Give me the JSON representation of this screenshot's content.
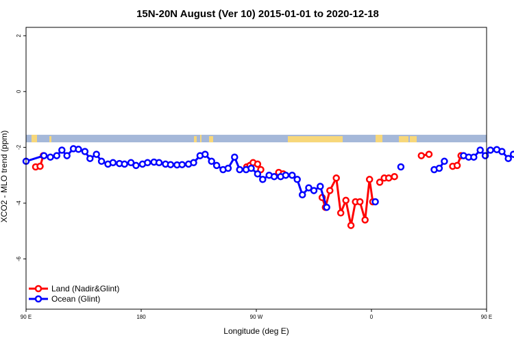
{
  "chart_data": {
    "type": "line",
    "title": "15N-20N August (Ver 10)   2015-01-01 to 2020-12-18",
    "xlabel": "Longitude (deg E)",
    "ylabel": "XCO2 - MLO trend (ppm)",
    "xlim": [
      90,
      450
    ],
    "ylim": [
      -7.8,
      2.3
    ],
    "x_ticks": [
      {
        "value": 90,
        "label": "90 E"
      },
      {
        "value": 180,
        "label": "180"
      },
      {
        "value": 270,
        "label": "90 W"
      },
      {
        "value": 360,
        "label": "0"
      },
      {
        "value": 450,
        "label": "90 E"
      },
      {
        "value": 540,
        "label": "180"
      }
    ],
    "y_ticks": [
      {
        "value": 2,
        "label": "2"
      },
      {
        "value": 0,
        "label": "0"
      },
      {
        "value": -2,
        "label": "-2"
      },
      {
        "value": -4,
        "label": "-4"
      },
      {
        "value": -6,
        "label": "-6"
      }
    ],
    "map_strip": {
      "y_top": -1.55,
      "y_bottom": -1.82,
      "ocean_color": "#a5b8d9",
      "land_color": "#f7d77a"
    },
    "legend": {
      "position": "bottom-left"
    },
    "series": [
      {
        "name": "Land (Nadir&Glint)",
        "color": "#ff0000",
        "segments": [
          [
            [
              97.5,
              -2.7
            ],
            [
              101,
              -2.68
            ],
            [
              103.5,
              -2.3
            ]
          ],
          [
            [
              262.5,
              -2.7
            ],
            [
              265,
              -2.65
            ],
            [
              267.5,
              -2.55
            ],
            [
              271,
              -2.6
            ],
            [
              273.5,
              -2.8
            ]
          ],
          [
            [
              287.5,
              -2.9
            ],
            [
              291,
              -2.95
            ]
          ],
          [
            [
              321.5,
              -3.8
            ],
            [
              324,
              -4.15
            ],
            [
              327.5,
              -3.55
            ],
            [
              332.5,
              -3.1
            ],
            [
              336,
              -4.35
            ],
            [
              340,
              -3.9
            ],
            [
              344,
              -4.8
            ],
            [
              347.5,
              -3.95
            ],
            [
              351,
              -3.95
            ],
            [
              355,
              -4.6
            ],
            [
              358.5,
              -3.15
            ],
            [
              361,
              -3.95
            ]
          ],
          [
            [
              366.5,
              -3.25
            ],
            [
              370,
              -3.1
            ],
            [
              373.5,
              -3.1
            ],
            [
              378,
              -3.05
            ]
          ],
          [
            [
              399,
              -2.3
            ],
            [
              405,
              -2.25
            ]
          ],
          [
            [
              423.5,
              -2.68
            ],
            [
              427,
              -2.65
            ],
            [
              430,
              -2.3
            ]
          ]
        ]
      },
      {
        "name": "Ocean (Glint)",
        "color": "#0000ff",
        "segments": [
          [
            [
              90,
              -2.5
            ],
            [
              104,
              -2.3
            ],
            [
              109,
              -2.35
            ],
            [
              114,
              -2.3
            ],
            [
              118,
              -2.1
            ],
            [
              122,
              -2.3
            ],
            [
              127,
              -2.05
            ],
            [
              131,
              -2.07
            ],
            [
              136,
              -2.15
            ],
            [
              140,
              -2.4
            ],
            [
              145,
              -2.25
            ],
            [
              149,
              -2.5
            ],
            [
              154,
              -2.6
            ],
            [
              158,
              -2.55
            ],
            [
              163,
              -2.58
            ],
            [
              167,
              -2.6
            ],
            [
              172,
              -2.55
            ],
            [
              176,
              -2.65
            ],
            [
              181,
              -2.6
            ],
            [
              185,
              -2.55
            ],
            [
              190,
              -2.53
            ],
            [
              194,
              -2.55
            ],
            [
              199,
              -2.6
            ],
            [
              203,
              -2.62
            ],
            [
              208,
              -2.63
            ],
            [
              212,
              -2.62
            ],
            [
              217,
              -2.6
            ],
            [
              221,
              -2.55
            ],
            [
              226,
              -2.3
            ],
            [
              230,
              -2.25
            ],
            [
              235,
              -2.5
            ],
            [
              239,
              -2.65
            ],
            [
              244,
              -2.8
            ],
            [
              248,
              -2.75
            ],
            [
              253,
              -2.35
            ],
            [
              257,
              -2.8
            ],
            [
              262,
              -2.8
            ],
            [
              266,
              -2.75
            ],
            [
              271,
              -2.95
            ],
            [
              275,
              -3.15
            ],
            [
              280,
              -3.0
            ],
            [
              284,
              -3.05
            ],
            [
              289,
              -3.05
            ],
            [
              293,
              -3.0
            ],
            [
              298,
              -3.0
            ],
            [
              302,
              -3.15
            ],
            [
              306,
              -3.7
            ],
            [
              311,
              -3.45
            ],
            [
              315,
              -3.55
            ],
            [
              320,
              -3.4
            ],
            [
              325,
              -4.15
            ]
          ],
          [
            [
              363,
              -3.95
            ]
          ],
          [
            [
              383,
              -2.7
            ]
          ],
          [
            [
              409,
              -2.8
            ],
            [
              413,
              -2.75
            ],
            [
              417,
              -2.5
            ]
          ],
          [
            [
              432,
              -2.3
            ],
            [
              436,
              -2.35
            ],
            [
              440,
              -2.35
            ],
            [
              445,
              -2.1
            ],
            [
              449,
              -2.3
            ],
            [
              453,
              -2.1
            ],
            [
              458,
              -2.08
            ],
            [
              462,
              -2.15
            ],
            [
              467,
              -2.4
            ],
            [
              471,
              -2.25
            ],
            [
              476,
              -2.5
            ],
            [
              480,
              -2.6
            ],
            [
              485,
              -2.55
            ],
            [
              489,
              -2.58
            ],
            [
              494,
              -2.6
            ]
          ]
        ]
      }
    ]
  }
}
